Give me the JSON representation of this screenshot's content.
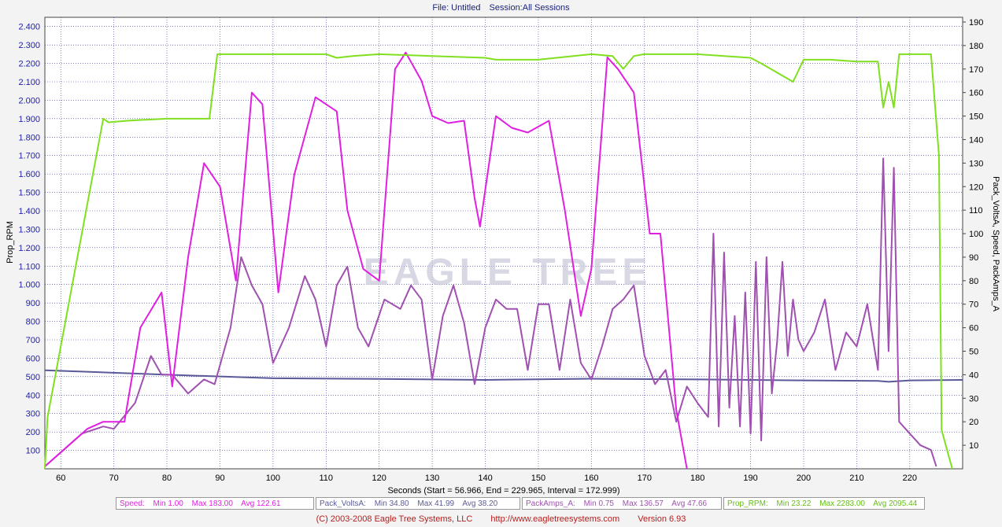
{
  "header": {
    "file": "File: Untitled",
    "session": "Session:All Sessions"
  },
  "footer": {
    "copyright": "(C) 2003-2008 Eagle Tree Systems, LLC",
    "url": "http://www.eagletreesystems.com",
    "version": "Version 6.93"
  },
  "watermark": {
    "text": "EAGLE TREE"
  },
  "colors": {
    "speed": "#e020e0",
    "volts": "#5a5a9a",
    "amps": "#a050b0",
    "rpm": "#80e020",
    "grid": "#3030a0",
    "axis_text": "#2020b0"
  },
  "legend": [
    {
      "name": "Speed:",
      "min": "Min 1.00",
      "max": "Max 183.00",
      "avg": "Avg 122.61"
    },
    {
      "name": "Pack_VoltsA:",
      "min": "Min 34.80",
      "max": "Max 41.99",
      "avg": "Avg 38.20"
    },
    {
      "name": "PackAmps_A:",
      "min": "Min 0.75",
      "max": "Max 136.57",
      "avg": "Avg 47.66"
    },
    {
      "name": "Prop_RPM:",
      "min": "Min 23.22",
      "max": "Max 2283.00",
      "avg": "Avg 2095.44"
    }
  ],
  "chart_data": {
    "type": "line",
    "xlabel": "Seconds (Start = 56.966,  End = 229.965,  Interval =  172.999)",
    "ylabel_left": "Prop_RPM",
    "ylabel_right": "Pack_VoltsA, Speed, PackAmps_A",
    "xlim": [
      57,
      229.965
    ],
    "ylim_left": [
      0,
      2450
    ],
    "ylim_right": [
      0,
      192
    ],
    "x_ticks": [
      "60",
      "70",
      "80",
      "90",
      "100",
      "110",
      "120",
      "130",
      "140",
      "150",
      "160",
      "170",
      "180",
      "190",
      "200",
      "210",
      "220"
    ],
    "y_left_ticks": [
      "100",
      "200",
      "300",
      "400",
      "500",
      "600",
      "700",
      "800",
      "900",
      "1.000",
      "1.100",
      "1.200",
      "1.300",
      "1.400",
      "1.500",
      "1.600",
      "1.700",
      "1.800",
      "1.900",
      "2.000",
      "2.100",
      "2.200",
      "2.300",
      "2.400"
    ],
    "y_right_ticks": [
      "10",
      "20",
      "30",
      "40",
      "50",
      "60",
      "70",
      "80",
      "90",
      "100",
      "110",
      "120",
      "130",
      "140",
      "150",
      "160",
      "170",
      "180",
      "190"
    ],
    "grid": true,
    "series": [
      {
        "name": "Prop_RPM",
        "axis": "left",
        "x": [
          57,
          57.5,
          68,
          69,
          73,
          80,
          88,
          89.5,
          92,
          100,
          110,
          112,
          115,
          120,
          130,
          140,
          142,
          150,
          160,
          164,
          166,
          168,
          170,
          180,
          190,
          192,
          198,
          200,
          205,
          210,
          214,
          215,
          216,
          217,
          218,
          224,
          225.5,
          226,
          228
        ],
        "y": [
          0,
          280,
          1900,
          1880,
          1890,
          1900,
          1900,
          2250,
          2250,
          2250,
          2250,
          2230,
          2240,
          2250,
          2240,
          2230,
          2220,
          2220,
          2250,
          2240,
          2170,
          2240,
          2250,
          2250,
          2230,
          2200,
          2100,
          2220,
          2220,
          2210,
          2210,
          1960,
          2100,
          1960,
          2250,
          2250,
          1700,
          210,
          0
        ]
      },
      {
        "name": "Speed",
        "axis": "right",
        "x": [
          57,
          65,
          68,
          72,
          75,
          79,
          81,
          84,
          87,
          90,
          93,
          96,
          98,
          101,
          104,
          108,
          112,
          114,
          117,
          120,
          123,
          125,
          128,
          130,
          133,
          136,
          138,
          139,
          142,
          145,
          148,
          152,
          155,
          158,
          160,
          163,
          165,
          168,
          171,
          173,
          176,
          178
        ],
        "y": [
          1,
          17,
          20,
          20,
          60,
          75,
          35,
          90,
          130,
          120,
          80,
          160,
          155,
          75,
          125,
          158,
          152,
          110,
          85,
          80,
          170,
          177,
          165,
          150,
          147,
          148,
          115,
          103,
          150,
          145,
          143,
          148,
          110,
          65,
          85,
          175,
          170,
          160,
          100,
          100,
          25,
          0
        ]
      },
      {
        "name": "PackAmps_A",
        "axis": "right",
        "x": [
          57,
          64,
          68,
          70,
          74,
          77,
          79,
          81,
          84,
          87,
          89,
          92,
          94,
          96,
          98,
          100,
          103,
          106,
          108,
          110,
          112,
          114,
          116,
          118,
          121,
          124,
          126,
          128,
          130,
          132,
          134,
          136,
          138,
          140,
          142,
          144,
          146,
          148,
          150,
          152,
          154,
          156,
          158,
          160,
          162,
          164,
          166,
          168,
          170,
          172,
          174,
          176,
          178,
          180,
          182,
          183,
          184,
          185,
          186,
          187,
          188,
          189,
          190,
          191,
          192,
          193,
          194,
          195,
          196,
          197,
          198,
          199,
          200,
          202,
          204,
          206,
          208,
          210,
          212,
          214,
          215,
          216,
          217,
          218,
          220,
          222,
          224,
          225
        ],
        "y": [
          1,
          15,
          18,
          17,
          28,
          48,
          40,
          40,
          32,
          38,
          36,
          60,
          90,
          78,
          70,
          45,
          60,
          82,
          72,
          52,
          78,
          86,
          60,
          52,
          72,
          68,
          78,
          72,
          38,
          65,
          78,
          62,
          36,
          60,
          72,
          68,
          68,
          42,
          70,
          70,
          42,
          72,
          45,
          38,
          52,
          68,
          72,
          78,
          48,
          36,
          42,
          20,
          35,
          28,
          22,
          100,
          18,
          92,
          26,
          65,
          18,
          75,
          15,
          88,
          12,
          90,
          32,
          54,
          88,
          48,
          72,
          55,
          50,
          58,
          72,
          42,
          58,
          52,
          70,
          42,
          132,
          50,
          128,
          20,
          15,
          10,
          8,
          1
        ]
      },
      {
        "name": "Pack_VoltsA",
        "axis": "right",
        "x": [
          57,
          80,
          100,
          120,
          140,
          160,
          180,
          200,
          214,
          216,
          220,
          229.965
        ],
        "y": [
          41.9,
          40,
          38.5,
          38.2,
          37.8,
          38.3,
          38,
          37.6,
          37.4,
          37,
          37.6,
          37.8
        ]
      }
    ]
  }
}
